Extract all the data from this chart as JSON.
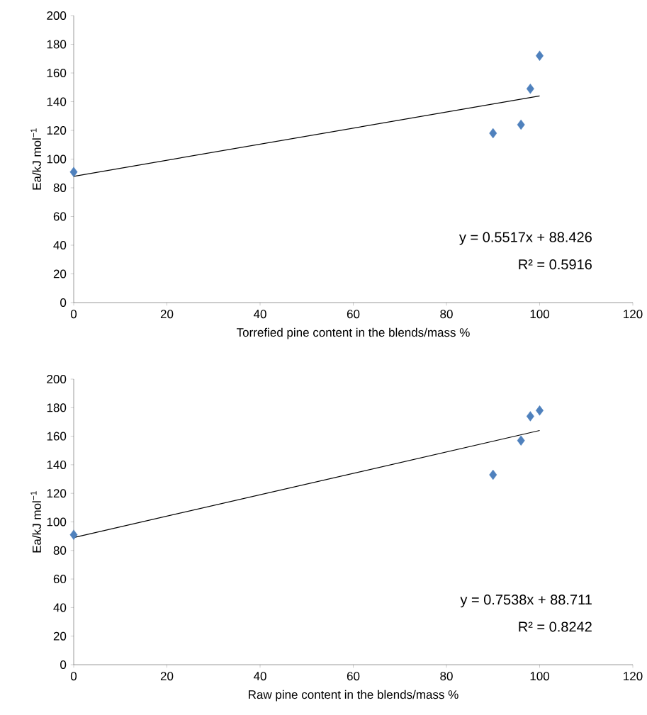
{
  "chart_data": [
    {
      "type": "scatter",
      "xlabel": "Torrefied pine content in the blends/mass %",
      "ylabel": "Ea/kJ mol$^{−1}$",
      "xlim": [
        0,
        120
      ],
      "ylim": [
        0,
        200
      ],
      "xticks": [
        0,
        20,
        40,
        60,
        80,
        100,
        120
      ],
      "yticks": [
        0,
        20,
        40,
        60,
        80,
        100,
        120,
        140,
        160,
        180,
        200
      ],
      "series": [
        {
          "color": "#4f81bd",
          "marker": "diamond",
          "x": [
            0,
            90,
            96,
            98,
            100
          ],
          "values": [
            91,
            118,
            124,
            149,
            172
          ]
        },
        {
          "type": "line",
          "marker": "none",
          "color": "#000000",
          "x": [
            0,
            100
          ],
          "values": [
            88,
            144
          ]
        }
      ],
      "annotations": [
        "y = 0.5517x + 88.426",
        "R² = 0.5916"
      ]
    },
    {
      "type": "scatter",
      "xlabel": "Raw pine content in the blends/mass %",
      "ylabel": "Ea/kJ mol$^{−1}$",
      "xlim": [
        0,
        120
      ],
      "ylim": [
        0,
        200
      ],
      "xticks": [
        0,
        20,
        40,
        60,
        80,
        100,
        120
      ],
      "yticks": [
        0,
        20,
        40,
        60,
        80,
        100,
        120,
        140,
        160,
        180,
        200
      ],
      "series": [
        {
          "color": "#4f81bd",
          "marker": "diamond",
          "x": [
            0,
            90,
            96,
            98,
            100
          ],
          "values": [
            91,
            133,
            157,
            174,
            178
          ]
        },
        {
          "type": "line",
          "marker": "none",
          "color": "#000000",
          "x": [
            0,
            100
          ],
          "values": [
            89,
            164
          ]
        }
      ],
      "annotations": [
        "y = 0.7538x + 88.711",
        "R² = 0.8242"
      ]
    }
  ]
}
